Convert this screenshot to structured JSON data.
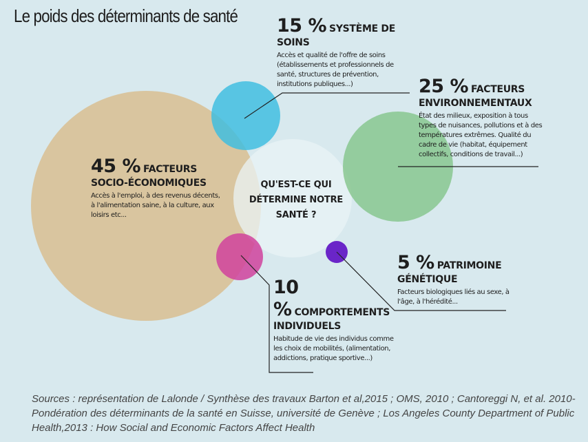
{
  "title": "Le poids des déterminants de santé",
  "center_question": "QU'EST-CE QUI DÉTERMINE NOTRE SANTÉ ?",
  "colors": {
    "socio": "#d8bf94",
    "soins": "#3cbde0",
    "environnement": "#83c48a",
    "comportements": "#d0429c",
    "genetique": "#6a25c8",
    "center": "#e9f3f5"
  },
  "determinants": {
    "socio": {
      "percent": "45 %",
      "label": "FACTEURS SOCIO-ÉCONOMIQUES",
      "description": "Accès à l'emploi, à des revenus décents, à l'alimentation saine, à la culture, aux loisirs etc..."
    },
    "soins": {
      "percent": "15 %",
      "label": "SYSTÈME DE SOINS",
      "description": "Accès et qualité de l'offre de soins (établissements et professionnels de santé, structures de prévention, institutions publiques...)"
    },
    "environnement": {
      "percent": "25 %",
      "label": "FACTEURS ENVIRONNEMENTAUX",
      "description": "État des milieux, exposition à tous types de nuisances, pollutions et à des températures extrêmes. Qualité du cadre de vie (habitat, équipement collectifs, conditions de travail...)"
    },
    "genetique": {
      "percent": "5 %",
      "label": "PATRIMOINE GÉNÉTIQUE",
      "description": "Facteurs biologiques liés au sexe, à l'âge, à l'hérédité..."
    },
    "comportements": {
      "percent": "10 %",
      "label": "COMPORTEMENTS INDIVIDUELS",
      "description": "Habitude de vie des individus comme les choix de mobilités, (alimentation, addictions, pratique sportive...)"
    }
  },
  "sources": "Sources : représentation de Lalonde / Synthèse des travaux Barton et al,2015 ; OMS, 2010 ; Cantoreggi N, et al. 2010-Pondération des déterminants de la santé en Suisse, université de Genève ; Los Angeles County Department of Public Health,2013 : How Social and Economic Factors Affect Health"
}
